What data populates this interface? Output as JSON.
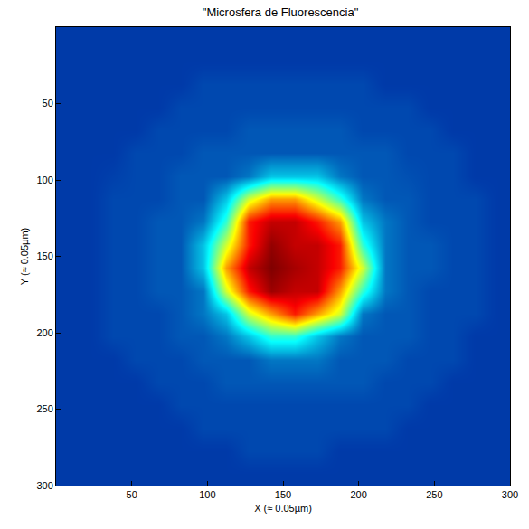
{
  "chart_data": {
    "type": "heatmap",
    "title": "\"Microsfera de Fluorescencia\"",
    "x_label": "X (≈ 0.05µm)",
    "y_label": "Y (≈ 0.05µm)",
    "x": [
      7.5,
      22.5,
      37.5,
      52.5,
      67.5,
      82.5,
      97.5,
      112.5,
      127.5,
      142.5,
      157.5,
      172.5,
      187.5,
      202.5,
      217.5,
      232.5,
      247.5,
      262.5,
      277.5,
      292.5
    ],
    "y": [
      7.5,
      22.5,
      37.5,
      52.5,
      67.5,
      82.5,
      97.5,
      112.5,
      127.5,
      142.5,
      157.5,
      172.5,
      187.5,
      202.5,
      217.5,
      232.5,
      247.5,
      262.5,
      277.5,
      292.5
    ],
    "z": [
      [
        0.12,
        0.12,
        0.12,
        0.12,
        0.12,
        0.12,
        0.12,
        0.12,
        0.12,
        0.12,
        0.12,
        0.12,
        0.12,
        0.12,
        0.12,
        0.12,
        0.12,
        0.12,
        0.12,
        0.12
      ],
      [
        0.12,
        0.12,
        0.12,
        0.12,
        0.12,
        0.12,
        0.12,
        0.12,
        0.12,
        0.12,
        0.12,
        0.12,
        0.12,
        0.12,
        0.12,
        0.12,
        0.12,
        0.12,
        0.12,
        0.12
      ],
      [
        0.12,
        0.12,
        0.12,
        0.12,
        0.12,
        0.12,
        0.14,
        0.14,
        0.14,
        0.14,
        0.14,
        0.14,
        0.14,
        0.14,
        0.12,
        0.12,
        0.12,
        0.12,
        0.12,
        0.12
      ],
      [
        0.12,
        0.12,
        0.12,
        0.12,
        0.12,
        0.14,
        0.14,
        0.14,
        0.14,
        0.14,
        0.14,
        0.14,
        0.14,
        0.14,
        0.14,
        0.14,
        0.12,
        0.12,
        0.12,
        0.12
      ],
      [
        0.12,
        0.12,
        0.12,
        0.12,
        0.14,
        0.14,
        0.14,
        0.14,
        0.16,
        0.16,
        0.16,
        0.16,
        0.16,
        0.14,
        0.14,
        0.14,
        0.14,
        0.12,
        0.12,
        0.12
      ],
      [
        0.12,
        0.12,
        0.12,
        0.14,
        0.14,
        0.14,
        0.16,
        0.16,
        0.16,
        0.16,
        0.16,
        0.16,
        0.16,
        0.16,
        0.16,
        0.14,
        0.14,
        0.14,
        0.12,
        0.12
      ],
      [
        0.12,
        0.12,
        0.13,
        0.14,
        0.14,
        0.16,
        0.16,
        0.16,
        0.2,
        0.3,
        0.3,
        0.3,
        0.2,
        0.16,
        0.16,
        0.15,
        0.14,
        0.14,
        0.12,
        0.12
      ],
      [
        0.12,
        0.12,
        0.14,
        0.14,
        0.14,
        0.16,
        0.16,
        0.3,
        0.58,
        0.72,
        0.72,
        0.58,
        0.42,
        0.2,
        0.16,
        0.16,
        0.14,
        0.14,
        0.14,
        0.12
      ],
      [
        0.12,
        0.12,
        0.14,
        0.14,
        0.16,
        0.16,
        0.2,
        0.42,
        0.85,
        0.93,
        0.93,
        0.85,
        0.72,
        0.3,
        0.2,
        0.16,
        0.14,
        0.14,
        0.14,
        0.12
      ],
      [
        0.12,
        0.12,
        0.14,
        0.14,
        0.16,
        0.16,
        0.3,
        0.58,
        0.85,
        0.98,
        0.93,
        0.93,
        0.85,
        0.42,
        0.2,
        0.16,
        0.16,
        0.14,
        0.14,
        0.12
      ],
      [
        0.12,
        0.12,
        0.14,
        0.14,
        0.16,
        0.16,
        0.3,
        0.72,
        0.93,
        1.0,
        0.96,
        0.93,
        0.85,
        0.58,
        0.2,
        0.16,
        0.16,
        0.14,
        0.14,
        0.12
      ],
      [
        0.12,
        0.12,
        0.14,
        0.14,
        0.16,
        0.16,
        0.2,
        0.58,
        0.85,
        0.97,
        0.93,
        0.93,
        0.72,
        0.42,
        0.2,
        0.16,
        0.14,
        0.14,
        0.14,
        0.12
      ],
      [
        0.12,
        0.12,
        0.14,
        0.14,
        0.14,
        0.16,
        0.2,
        0.3,
        0.58,
        0.72,
        0.85,
        0.72,
        0.58,
        0.2,
        0.16,
        0.16,
        0.14,
        0.14,
        0.14,
        0.12
      ],
      [
        0.12,
        0.12,
        0.14,
        0.14,
        0.14,
        0.16,
        0.16,
        0.2,
        0.3,
        0.42,
        0.42,
        0.3,
        0.2,
        0.16,
        0.16,
        0.16,
        0.14,
        0.14,
        0.12,
        0.12
      ],
      [
        0.12,
        0.12,
        0.12,
        0.14,
        0.14,
        0.14,
        0.16,
        0.16,
        0.16,
        0.2,
        0.2,
        0.2,
        0.16,
        0.16,
        0.16,
        0.14,
        0.14,
        0.14,
        0.12,
        0.12
      ],
      [
        0.12,
        0.12,
        0.12,
        0.12,
        0.14,
        0.14,
        0.14,
        0.16,
        0.16,
        0.16,
        0.16,
        0.16,
        0.16,
        0.16,
        0.14,
        0.14,
        0.14,
        0.12,
        0.12,
        0.12
      ],
      [
        0.12,
        0.12,
        0.12,
        0.12,
        0.12,
        0.14,
        0.14,
        0.14,
        0.14,
        0.14,
        0.14,
        0.14,
        0.14,
        0.14,
        0.14,
        0.14,
        0.12,
        0.12,
        0.12,
        0.12
      ],
      [
        0.12,
        0.12,
        0.12,
        0.12,
        0.12,
        0.12,
        0.14,
        0.14,
        0.14,
        0.14,
        0.14,
        0.14,
        0.14,
        0.14,
        0.14,
        0.12,
        0.12,
        0.12,
        0.12,
        0.12
      ],
      [
        0.12,
        0.12,
        0.12,
        0.12,
        0.12,
        0.12,
        0.12,
        0.12,
        0.14,
        0.14,
        0.14,
        0.14,
        0.12,
        0.12,
        0.12,
        0.12,
        0.12,
        0.12,
        0.12,
        0.12
      ],
      [
        0.12,
        0.12,
        0.12,
        0.12,
        0.12,
        0.12,
        0.12,
        0.12,
        0.12,
        0.12,
        0.12,
        0.12,
        0.12,
        0.12,
        0.12,
        0.12,
        0.12,
        0.12,
        0.12,
        0.12
      ]
    ],
    "zlim": [
      0,
      1
    ],
    "color": "Jet",
    "xlim": [
      0,
      300
    ],
    "ylim": [
      300,
      0
    ],
    "xticks": [
      50,
      100,
      150,
      200,
      250,
      300
    ],
    "yticks": [
      50,
      100,
      150,
      200,
      250,
      300
    ],
    "grid": false
  }
}
